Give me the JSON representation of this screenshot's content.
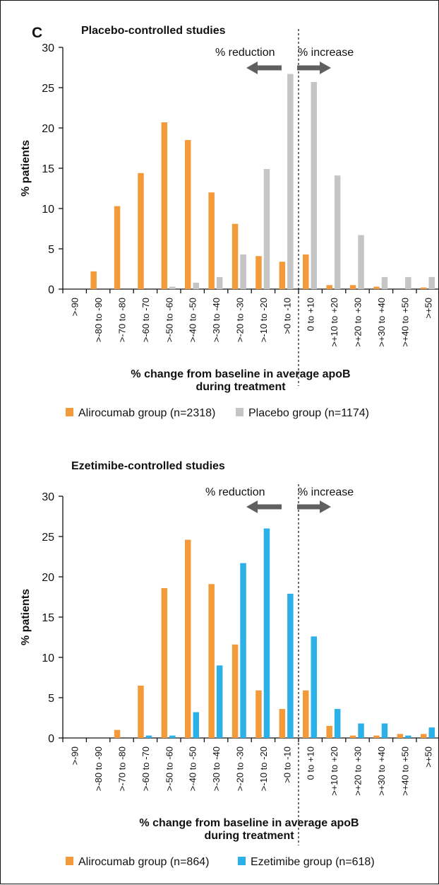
{
  "panel_letter": "C",
  "colors": {
    "alirocumab": "#F39A3A",
    "placebo": "#C5C5C5",
    "ezetimibe": "#2BB0E8",
    "arrow": "#606060",
    "axis": "#111111"
  },
  "chart_data": [
    {
      "type": "bar",
      "title": "Placebo-controlled studies",
      "xlabel": "% change from baseline in average apoB\nduring treatment",
      "ylabel": "% patients",
      "ylim": [
        0,
        30
      ],
      "yticks": [
        0,
        5,
        10,
        15,
        20,
        25,
        30
      ],
      "categories": [
        ">-90",
        ">-80 to -90",
        ">-70 to -80",
        ">-60 to -70",
        ">-50 to -60",
        ">-40 to -50",
        ">-30 to -40",
        ">-20 to -30",
        ">-10 to -20",
        ">0 to -10",
        "0 to +10",
        ">+10 to +20",
        ">+20 to +30",
        ">+30 to +40",
        ">+40 to +50",
        ">+50"
      ],
      "series": [
        {
          "name": "Alirocumab group (n=2318)",
          "color_key": "alirocumab",
          "values": [
            0,
            2.2,
            10.3,
            14.4,
            20.7,
            18.5,
            12.0,
            8.1,
            4.1,
            3.4,
            4.3,
            0.5,
            0.5,
            0.3,
            0,
            0.2
          ]
        },
        {
          "name": "Placebo group (n=1174)",
          "color_key": "placebo",
          "values": [
            0,
            0,
            0,
            0,
            0.3,
            0.8,
            1.5,
            4.3,
            14.9,
            26.7,
            25.7,
            14.1,
            6.7,
            1.5,
            1.5,
            1.5
          ]
        }
      ],
      "annotations": {
        "reduction": "% reduction",
        "increase": "% increase"
      },
      "grid": false,
      "legend_position": "bottom"
    },
    {
      "type": "bar",
      "title": "Ezetimibe-controlled studies",
      "xlabel": "% change from baseline in average apoB\nduring treatment",
      "ylabel": "% patients",
      "ylim": [
        0,
        30
      ],
      "yticks": [
        0,
        5,
        10,
        15,
        20,
        25,
        30
      ],
      "categories": [
        ">-90",
        ">-80 to -90",
        ">-70 to -80",
        ">-60 to -70",
        ">-50 to -60",
        ">-40 to -50",
        ">-30 to -40",
        ">-20 to -30",
        ">-10 to -20",
        ">0 to -10",
        "0 to +10",
        ">+10 to +20",
        ">+20 to +30",
        ">+30 to +40",
        ">+40 to +50",
        ">+50"
      ],
      "series": [
        {
          "name": "Alirocumab group (n=864)",
          "color_key": "alirocumab",
          "values": [
            0,
            0,
            1.0,
            6.5,
            18.6,
            24.6,
            19.1,
            11.6,
            5.9,
            3.6,
            5.9,
            1.5,
            0.3,
            0.3,
            0.5,
            0.5
          ]
        },
        {
          "name": "Ezetimibe group (n=618)",
          "color_key": "ezetimibe",
          "values": [
            0,
            0,
            0,
            0.3,
            0.3,
            3.2,
            9.0,
            21.7,
            26.0,
            17.9,
            12.6,
            3.6,
            1.8,
            1.8,
            0.3,
            1.3
          ]
        }
      ],
      "annotations": {
        "reduction": "% reduction",
        "increase": "% increase"
      },
      "grid": false,
      "legend_position": "bottom"
    }
  ]
}
